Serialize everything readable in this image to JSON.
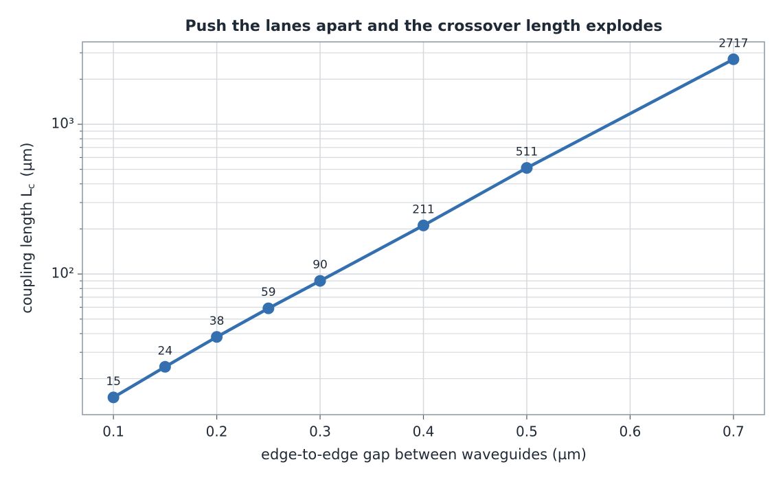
{
  "chart_data": {
    "type": "line",
    "title": "Push the lanes apart and the crossover length explodes",
    "xlabel": "edge-to-edge gap between waveguides  (µm)",
    "ylabel": "coupling length  L",
    "ylabel_sub": "c",
    "ylabel_unit": "(µm)",
    "x": [
      0.1,
      0.15,
      0.2,
      0.25,
      0.3,
      0.4,
      0.5,
      0.7
    ],
    "series": [
      {
        "name": "coupling length",
        "color": "#3470b0",
        "values": [
          15,
          24,
          38,
          59,
          90,
          211,
          511,
          2717
        ]
      }
    ],
    "xlim": [
      0.07,
      0.73
    ],
    "xticks": [
      0.1,
      0.2,
      0.3,
      0.4,
      0.5,
      0.6,
      0.7
    ],
    "ylim": [
      11.5,
      3550
    ],
    "yscale": "log",
    "yticks": [
      {
        "value": 100,
        "label": "10²"
      },
      {
        "value": 1000,
        "label": "10³"
      }
    ],
    "yminorticks": [
      20,
      30,
      40,
      50,
      60,
      70,
      80,
      90,
      200,
      300,
      400,
      500,
      600,
      700,
      800,
      900,
      2000,
      3000
    ],
    "grid": true,
    "markers": true,
    "data_labels": true
  }
}
